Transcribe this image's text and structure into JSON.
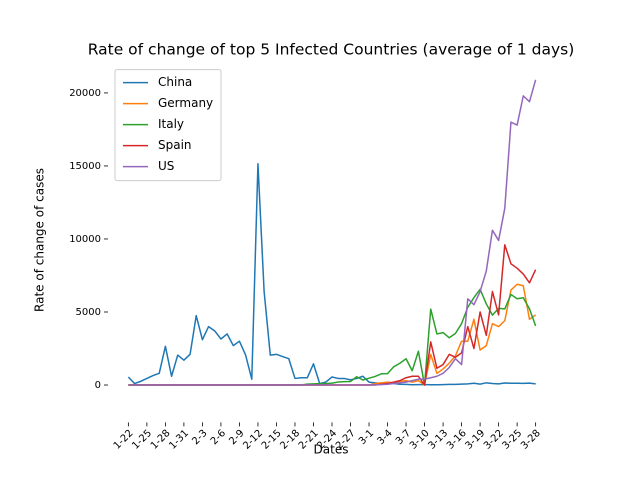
{
  "chart_data": {
    "type": "line",
    "title": "Rate of change of top 5 Infected Countries (average of 1 days)",
    "x_label": "Dates",
    "y_label": "Rate of change of cases",
    "categories": [
      "1-22",
      null,
      null,
      "1-25",
      null,
      null,
      "1-28",
      null,
      null,
      "1-31",
      null,
      null,
      "2-3",
      null,
      null,
      "2-6",
      null,
      null,
      "2-9",
      null,
      null,
      "2-12",
      null,
      null,
      "2-15",
      null,
      null,
      "2-18",
      null,
      null,
      "2-21",
      null,
      null,
      "2-24",
      null,
      null,
      "2-27",
      null,
      null,
      "3-1",
      null,
      null,
      "3-4",
      null,
      null,
      "3-7",
      null,
      null,
      "3-10",
      null,
      null,
      "3-13",
      null,
      null,
      "3-16",
      null,
      null,
      "3-19",
      null,
      null,
      "3-22",
      null,
      null,
      "3-25",
      null,
      null,
      "3-28"
    ],
    "series": [
      {
        "name": "China",
        "color": "#1f77b4",
        "values": [
          550,
          100,
          250,
          450,
          650,
          800,
          2650,
          600,
          2050,
          1700,
          2100,
          4750,
          3100,
          4000,
          3700,
          3150,
          3500,
          2700,
          3000,
          2050,
          400,
          15150,
          6400,
          2050,
          2100,
          1950,
          1800,
          450,
          500,
          500,
          1450,
          100,
          200,
          550,
          450,
          450,
          350,
          450,
          600,
          200,
          150,
          100,
          150,
          100,
          50,
          40,
          20,
          30,
          30,
          20,
          20,
          30,
          40,
          40,
          60,
          80,
          120,
          60,
          150,
          100,
          80,
          140,
          120,
          120,
          110,
          130,
          80
        ]
      },
      {
        "name": "Germany",
        "color": "#ff7f0e",
        "values": [
          0,
          0,
          0,
          0,
          0,
          0,
          0,
          0,
          0,
          0,
          0,
          0,
          0,
          0,
          0,
          0,
          0,
          0,
          0,
          0,
          0,
          0,
          0,
          0,
          0,
          0,
          0,
          0,
          0,
          0,
          0,
          0,
          0,
          0,
          0,
          0,
          0,
          0,
          0,
          0,
          100,
          150,
          200,
          150,
          250,
          300,
          200,
          300,
          0,
          2100,
          800,
          1100,
          1500,
          2000,
          3000,
          3000,
          4500,
          2400,
          2700,
          4200,
          4000,
          4400,
          6500,
          6900,
          6800,
          4500,
          4800
        ]
      },
      {
        "name": "Italy",
        "color": "#2ca02c",
        "values": [
          0,
          0,
          0,
          0,
          0,
          0,
          0,
          0,
          0,
          0,
          0,
          0,
          0,
          0,
          0,
          0,
          0,
          0,
          0,
          0,
          0,
          0,
          0,
          0,
          0,
          0,
          0,
          0,
          0,
          62,
          77,
          93,
          99,
          131,
          202,
          233,
          240,
          566,
          342,
          466,
          587,
          769,
          778,
          1247,
          1492,
          1797,
          977,
          2313,
          0,
          5198,
          3497,
          3590,
          3233,
          3526,
          4207,
          5322,
          5986,
          6557,
          5560,
          4789,
          5249,
          5210,
          6203,
          5909,
          5974,
          5217,
          4050
        ]
      },
      {
        "name": "Spain",
        "color": "#d62728",
        "values": [
          0,
          0,
          0,
          0,
          0,
          0,
          0,
          0,
          0,
          0,
          0,
          0,
          0,
          0,
          0,
          0,
          0,
          0,
          0,
          0,
          0,
          0,
          0,
          0,
          0,
          0,
          0,
          0,
          0,
          0,
          0,
          0,
          0,
          0,
          0,
          0,
          0,
          0,
          0,
          0,
          0,
          50,
          100,
          200,
          300,
          500,
          600,
          600,
          0,
          2950,
          1150,
          1400,
          2100,
          1900,
          2200,
          4000,
          2500,
          5000,
          3400,
          6400,
          4800,
          9600,
          8300,
          8000,
          7600,
          7000,
          7900
        ]
      },
      {
        "name": "US",
        "color": "#9467bd",
        "values": [
          0,
          0,
          0,
          0,
          0,
          0,
          0,
          0,
          0,
          0,
          0,
          0,
          0,
          0,
          0,
          0,
          0,
          0,
          0,
          0,
          0,
          0,
          0,
          0,
          0,
          0,
          0,
          0,
          0,
          0,
          0,
          0,
          0,
          0,
          0,
          0,
          0,
          0,
          0,
          0,
          20,
          30,
          50,
          100,
          150,
          200,
          300,
          400,
          400,
          500,
          600,
          800,
          1200,
          1800,
          1400,
          5900,
          5500,
          6400,
          7800,
          10600,
          9900,
          12100,
          18000,
          17800,
          19800,
          19400,
          20900
        ]
      }
    ],
    "xlim": [
      -3.3,
      69.3
    ],
    "ylim": [
      -2560,
      22420
    ],
    "yticks": [
      0,
      5000,
      10000,
      15000,
      20000
    ],
    "legend": "upper left"
  }
}
